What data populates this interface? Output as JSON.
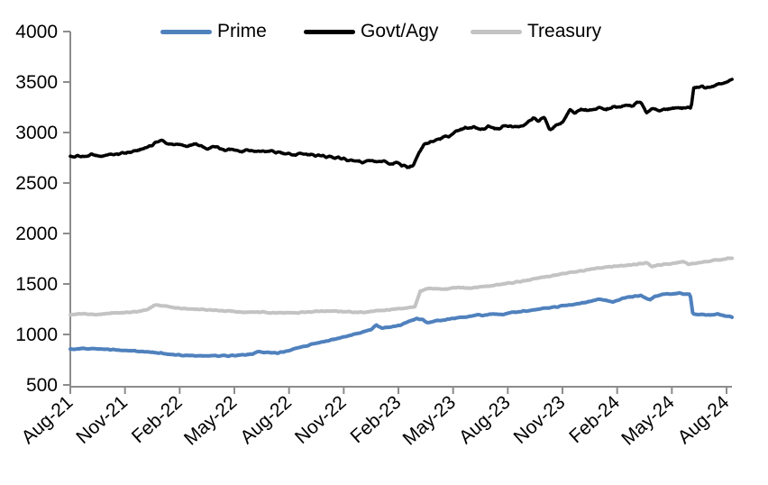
{
  "chart_data": {
    "type": "line",
    "title": "",
    "legend_position": "top",
    "grid": false,
    "axis_color": "#8c8c8c",
    "text_color": "#000000",
    "x_axis": {
      "tick_labels": [
        "Aug-21",
        "Nov-21",
        "Feb-22",
        "May-22",
        "Aug-22",
        "Nov-22",
        "Feb-23",
        "May-23",
        "Aug-23",
        "Nov-23",
        "Feb-24",
        "May-24",
        "Aug-24"
      ],
      "tick_months": [
        0,
        3,
        6,
        9,
        12,
        15,
        18,
        21,
        24,
        27,
        30,
        33,
        36
      ]
    },
    "y_axis": {
      "min": 500,
      "max": 4000,
      "step": 500,
      "tick_labels": [
        "500",
        "1000",
        "1500",
        "2000",
        "2500",
        "3000",
        "3500",
        "4000"
      ]
    },
    "series": [
      {
        "name": "Prime",
        "color": "#4f81bd",
        "points": [
          [
            0,
            855
          ],
          [
            0.7,
            862
          ],
          [
            1.5,
            856
          ],
          [
            2.2,
            850
          ],
          [
            3,
            840
          ],
          [
            3.7,
            835
          ],
          [
            4.4,
            825
          ],
          [
            5,
            813
          ],
          [
            5.6,
            800
          ],
          [
            6.2,
            792
          ],
          [
            7,
            788
          ],
          [
            7.8,
            791
          ],
          [
            8.6,
            789
          ],
          [
            9.4,
            796
          ],
          [
            10,
            808
          ],
          [
            10.3,
            832
          ],
          [
            10.7,
            819
          ],
          [
            11.4,
            817
          ],
          [
            12,
            840
          ],
          [
            12.7,
            877
          ],
          [
            13.4,
            908
          ],
          [
            14.2,
            942
          ],
          [
            15,
            975
          ],
          [
            15.8,
            1012
          ],
          [
            16.5,
            1048
          ],
          [
            16.8,
            1090
          ],
          [
            17.1,
            1064
          ],
          [
            17.6,
            1076
          ],
          [
            18.1,
            1092
          ],
          [
            18.6,
            1132
          ],
          [
            19,
            1160
          ],
          [
            19.3,
            1148
          ],
          [
            19.6,
            1114
          ],
          [
            20,
            1130
          ],
          [
            20.6,
            1150
          ],
          [
            21.2,
            1162
          ],
          [
            21.8,
            1176
          ],
          [
            22.3,
            1192
          ],
          [
            22.7,
            1186
          ],
          [
            23.2,
            1205
          ],
          [
            23.7,
            1199
          ],
          [
            24.2,
            1218
          ],
          [
            24.8,
            1228
          ],
          [
            25.4,
            1242
          ],
          [
            26,
            1258
          ],
          [
            26.6,
            1272
          ],
          [
            27.2,
            1288
          ],
          [
            27.8,
            1302
          ],
          [
            28.4,
            1322
          ],
          [
            29,
            1350
          ],
          [
            29.4,
            1338
          ],
          [
            29.8,
            1324
          ],
          [
            30.3,
            1360
          ],
          [
            30.8,
            1374
          ],
          [
            31.3,
            1384
          ],
          [
            31.8,
            1342
          ],
          [
            32.1,
            1382
          ],
          [
            32.5,
            1396
          ],
          [
            33,
            1402
          ],
          [
            33.4,
            1408
          ],
          [
            33.7,
            1398
          ],
          [
            34,
            1405
          ],
          [
            34.15,
            1205
          ],
          [
            34.6,
            1198
          ],
          [
            35.1,
            1192
          ],
          [
            35.5,
            1203
          ],
          [
            35.9,
            1186
          ],
          [
            36.3,
            1176
          ]
        ]
      },
      {
        "name": "Govt/Agy",
        "color": "#000000",
        "points": [
          [
            0,
            2775
          ],
          [
            0.6,
            2762
          ],
          [
            1.2,
            2778
          ],
          [
            1.8,
            2770
          ],
          [
            2.4,
            2788
          ],
          [
            3,
            2800
          ],
          [
            3.6,
            2818
          ],
          [
            4.2,
            2848
          ],
          [
            4.7,
            2905
          ],
          [
            5,
            2928
          ],
          [
            5.3,
            2900
          ],
          [
            5.7,
            2872
          ],
          [
            6,
            2880
          ],
          [
            6.4,
            2858
          ],
          [
            6.8,
            2885
          ],
          [
            7.2,
            2868
          ],
          [
            7.5,
            2832
          ],
          [
            7.9,
            2862
          ],
          [
            8.2,
            2842
          ],
          [
            8.5,
            2822
          ],
          [
            8.9,
            2836
          ],
          [
            9.3,
            2812
          ],
          [
            9.7,
            2822
          ],
          [
            10.2,
            2812
          ],
          [
            10.7,
            2818
          ],
          [
            11.2,
            2806
          ],
          [
            11.7,
            2798
          ],
          [
            12.2,
            2784
          ],
          [
            12.7,
            2790
          ],
          [
            13.2,
            2775
          ],
          [
            13.7,
            2768
          ],
          [
            14.2,
            2758
          ],
          [
            14.7,
            2748
          ],
          [
            15.2,
            2728
          ],
          [
            15.7,
            2718
          ],
          [
            16.1,
            2702
          ],
          [
            16.4,
            2722
          ],
          [
            16.8,
            2705
          ],
          [
            17.2,
            2718
          ],
          [
            17.5,
            2688
          ],
          [
            17.9,
            2700
          ],
          [
            18.2,
            2678
          ],
          [
            18.5,
            2658
          ],
          [
            18.8,
            2672
          ],
          [
            19.1,
            2790
          ],
          [
            19.4,
            2878
          ],
          [
            19.8,
            2912
          ],
          [
            20.3,
            2938
          ],
          [
            20.8,
            2972
          ],
          [
            21.3,
            3022
          ],
          [
            21.7,
            3042
          ],
          [
            22.1,
            3052
          ],
          [
            22.5,
            3034
          ],
          [
            22.9,
            3058
          ],
          [
            23.3,
            3032
          ],
          [
            23.7,
            3058
          ],
          [
            24.1,
            3068
          ],
          [
            24.6,
            3052
          ],
          [
            25,
            3082
          ],
          [
            25.4,
            3148
          ],
          [
            25.7,
            3108
          ],
          [
            26,
            3158
          ],
          [
            26.3,
            3032
          ],
          [
            26.6,
            3062
          ],
          [
            27,
            3098
          ],
          [
            27.4,
            3225
          ],
          [
            27.7,
            3198
          ],
          [
            28,
            3228
          ],
          [
            28.5,
            3212
          ],
          [
            29,
            3248
          ],
          [
            29.4,
            3228
          ],
          [
            29.8,
            3258
          ],
          [
            30.2,
            3252
          ],
          [
            30.5,
            3282
          ],
          [
            30.8,
            3262
          ],
          [
            31.1,
            3298
          ],
          [
            31.3,
            3308
          ],
          [
            31.6,
            3192
          ],
          [
            31.9,
            3228
          ],
          [
            32.3,
            3215
          ],
          [
            32.8,
            3232
          ],
          [
            33.3,
            3242
          ],
          [
            33.8,
            3248
          ],
          [
            34.05,
            3242
          ],
          [
            34.2,
            3445
          ],
          [
            34.6,
            3458
          ],
          [
            34.9,
            3442
          ],
          [
            35.3,
            3465
          ],
          [
            35.7,
            3488
          ],
          [
            36,
            3505
          ],
          [
            36.3,
            3518
          ]
        ]
      },
      {
        "name": "Treasury",
        "color": "#c3c3c3",
        "points": [
          [
            0,
            1196
          ],
          [
            0.7,
            1204
          ],
          [
            1.5,
            1198
          ],
          [
            2.2,
            1209
          ],
          [
            3,
            1215
          ],
          [
            3.7,
            1224
          ],
          [
            4.2,
            1248
          ],
          [
            4.7,
            1292
          ],
          [
            5.1,
            1284
          ],
          [
            5.6,
            1268
          ],
          [
            6.2,
            1256
          ],
          [
            7,
            1248
          ],
          [
            7.7,
            1241
          ],
          [
            8.4,
            1234
          ],
          [
            9,
            1227
          ],
          [
            9.6,
            1218
          ],
          [
            10.3,
            1222
          ],
          [
            11,
            1215
          ],
          [
            11.7,
            1212
          ],
          [
            12.4,
            1216
          ],
          [
            13,
            1222
          ],
          [
            13.7,
            1228
          ],
          [
            14.4,
            1232
          ],
          [
            15,
            1228
          ],
          [
            15.6,
            1222
          ],
          [
            16.2,
            1218
          ],
          [
            16.8,
            1232
          ],
          [
            17.4,
            1243
          ],
          [
            18,
            1256
          ],
          [
            18.5,
            1263
          ],
          [
            18.9,
            1272
          ],
          [
            19.2,
            1432
          ],
          [
            19.6,
            1452
          ],
          [
            20,
            1458
          ],
          [
            20.4,
            1447
          ],
          [
            20.8,
            1455
          ],
          [
            21.3,
            1465
          ],
          [
            21.8,
            1457
          ],
          [
            22.3,
            1470
          ],
          [
            22.8,
            1478
          ],
          [
            23.3,
            1490
          ],
          [
            23.8,
            1502
          ],
          [
            24.3,
            1512
          ],
          [
            24.8,
            1526
          ],
          [
            25.3,
            1546
          ],
          [
            25.8,
            1562
          ],
          [
            26.3,
            1578
          ],
          [
            26.8,
            1592
          ],
          [
            27.3,
            1608
          ],
          [
            27.8,
            1622
          ],
          [
            28.3,
            1638
          ],
          [
            28.8,
            1652
          ],
          [
            29.3,
            1663
          ],
          [
            29.8,
            1672
          ],
          [
            30.3,
            1683
          ],
          [
            30.8,
            1691
          ],
          [
            31.3,
            1700
          ],
          [
            31.6,
            1710
          ],
          [
            31.9,
            1673
          ],
          [
            32.3,
            1688
          ],
          [
            32.8,
            1700
          ],
          [
            33.3,
            1715
          ],
          [
            33.6,
            1722
          ],
          [
            33.9,
            1693
          ],
          [
            34.3,
            1706
          ],
          [
            34.8,
            1722
          ],
          [
            35.3,
            1733
          ],
          [
            35.8,
            1743
          ],
          [
            36.3,
            1757
          ]
        ]
      }
    ]
  }
}
